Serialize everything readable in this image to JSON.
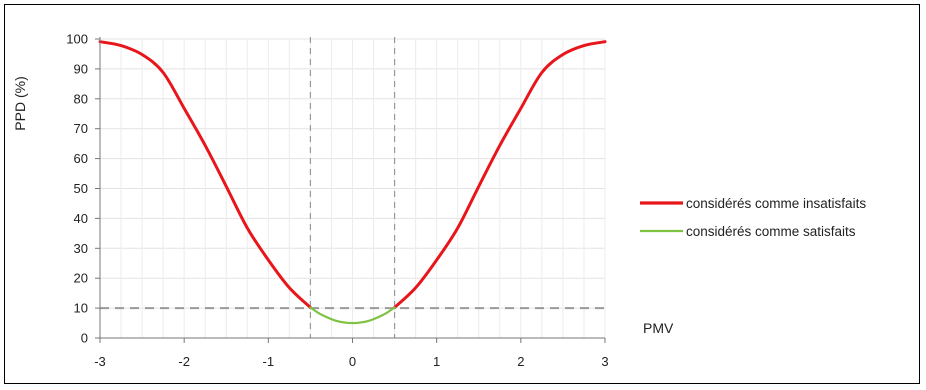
{
  "chart_data": {
    "type": "line",
    "title": "",
    "xlabel": "PMV",
    "ylabel": "PPD (%)",
    "xlim": [
      -3,
      3
    ],
    "ylim": [
      0,
      100
    ],
    "x_ticks": [
      "-3",
      "-2",
      "-1",
      "0",
      "1",
      "2",
      "3"
    ],
    "y_ticks": [
      "0",
      "10",
      "20",
      "30",
      "40",
      "50",
      "60",
      "70",
      "80",
      "90",
      "100"
    ],
    "grid": true,
    "legend_position": "right",
    "series": [
      {
        "name": "considérés comme insatisfaits",
        "color": "#e8161b",
        "segments": [
          {
            "x": [
              -3,
              -2.75,
              -2.5,
              -2.25,
              -2,
              -1.75,
              -1.5,
              -1.25,
              -1,
              -0.75,
              -0.5
            ],
            "y": [
              99.1,
              97.8,
              94.8,
              88.8,
              76.8,
              64.4,
              50.7,
              36.8,
              26.1,
              16.8,
              10.2
            ]
          },
          {
            "x": [
              0.5,
              0.75,
              1,
              1.25,
              1.5,
              1.75,
              2,
              2.25,
              2.5,
              2.75,
              3
            ],
            "y": [
              10.2,
              16.8,
              26.1,
              36.8,
              50.7,
              64.4,
              76.8,
              88.8,
              94.8,
              97.8,
              99.1
            ]
          }
        ]
      },
      {
        "name": "considérés comme satisfaits",
        "color": "#7ec242",
        "segments": [
          {
            "x": [
              -0.5,
              -0.4,
              -0.3,
              -0.2,
              -0.1,
              0,
              0.1,
              0.2,
              0.3,
              0.4,
              0.5
            ],
            "y": [
              10.2,
              8.3,
              6.9,
              5.8,
              5.2,
              5.0,
              5.2,
              5.8,
              6.9,
              8.3,
              10.2
            ]
          }
        ]
      }
    ],
    "reference_lines": [
      {
        "orientation": "horizontal",
        "value": 10,
        "style": "dashed",
        "color": "#999999"
      },
      {
        "orientation": "vertical",
        "value": -0.5,
        "style": "dashed",
        "color": "#999999"
      },
      {
        "orientation": "vertical",
        "value": 0.5,
        "style": "dashed",
        "color": "#999999"
      }
    ]
  }
}
